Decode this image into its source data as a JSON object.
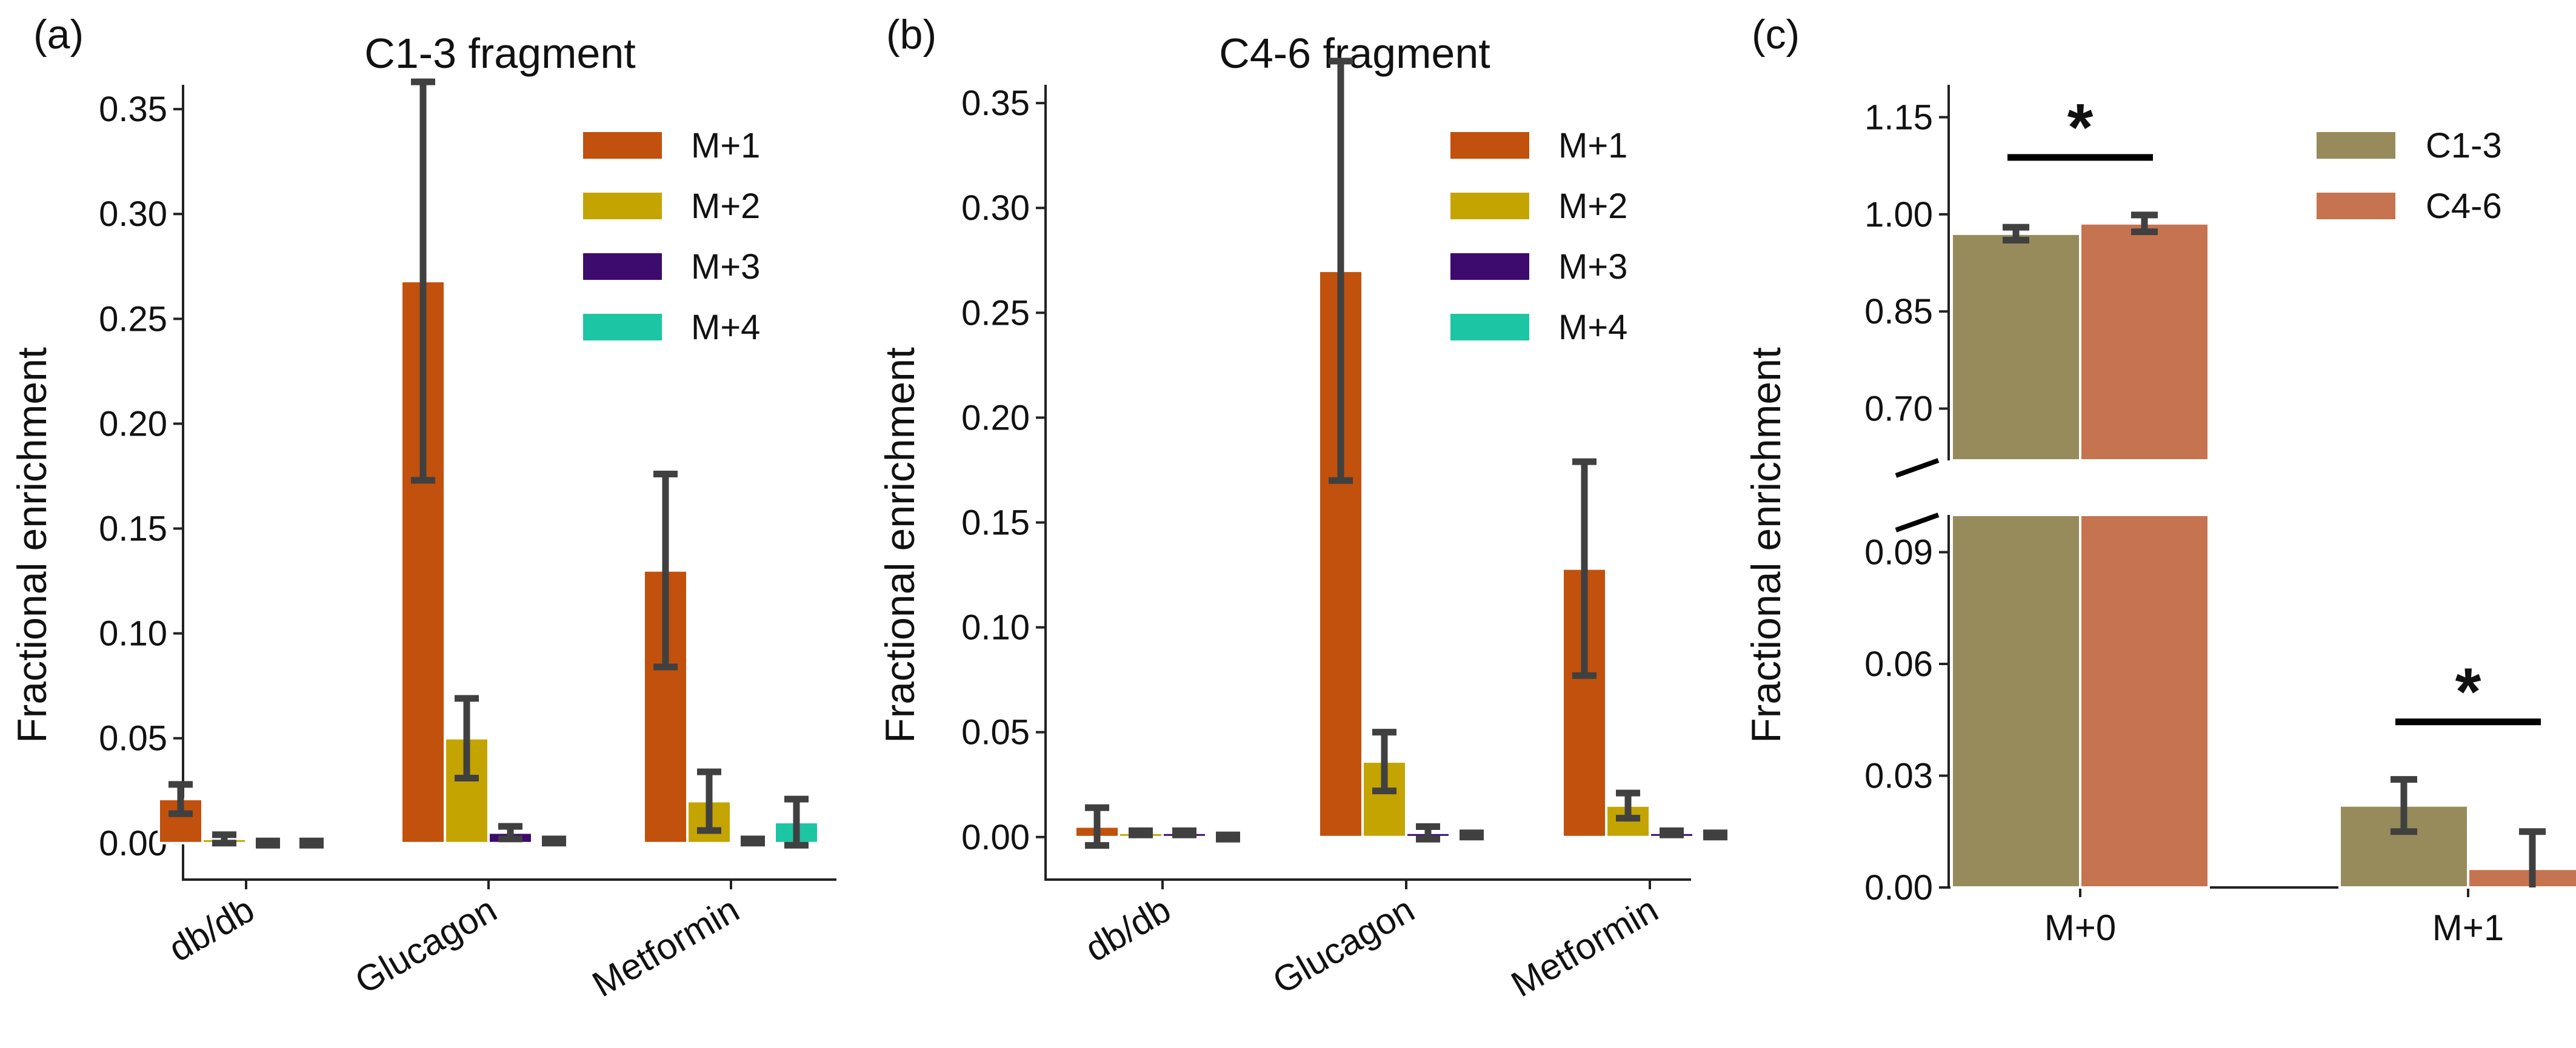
{
  "chart_data": [
    {
      "type": "bar",
      "panel": "(a)",
      "title": "C1-3 fragment",
      "xlabel": "",
      "ylabel": "Fractional enrichment",
      "ylim": [
        -0.02,
        0.385
      ],
      "yticks": [
        "0.00",
        "0.05",
        "0.10",
        "0.15",
        "0.20",
        "0.25",
        "0.30",
        "0.35"
      ],
      "categories": [
        "db/db",
        "Glucagon",
        "Metformin"
      ],
      "series": [
        {
          "name": "M+1",
          "color": "#c1510c",
          "values": [
            0.021,
            0.268,
            0.13
          ],
          "errors": [
            0.007,
            0.095,
            0.046
          ]
        },
        {
          "name": "M+2",
          "color": "#c4a400",
          "values": [
            0.002,
            0.05,
            0.02
          ],
          "errors": [
            0.002,
            0.019,
            0.014
          ]
        },
        {
          "name": "M+3",
          "color": "#3d0a6e",
          "values": [
            0.0,
            0.005,
            0.001
          ],
          "errors": [
            0.001,
            0.003,
            0.001
          ]
        },
        {
          "name": "M+4",
          "color": "#1cc6a5",
          "values": [
            0.0,
            0.001,
            0.01
          ],
          "errors": [
            0.001,
            0.001,
            0.011
          ]
        }
      ]
    },
    {
      "type": "bar",
      "panel": "(b)",
      "title": "C4-6 fragment",
      "xlabel": "",
      "ylabel": "Fractional enrichment",
      "ylim": [
        -0.02,
        0.385
      ],
      "yticks": [
        "0.00",
        "0.05",
        "0.10",
        "0.15",
        "0.20",
        "0.25",
        "0.30",
        "0.35"
      ],
      "categories": [
        "db/db",
        "Glucagon",
        "Metformin"
      ],
      "series": [
        {
          "name": "M+1",
          "color": "#c1510c",
          "values": [
            0.005,
            0.27,
            0.128
          ],
          "errors": [
            0.009,
            0.1,
            0.051
          ]
        },
        {
          "name": "M+2",
          "color": "#c4a400",
          "values": [
            0.002,
            0.036,
            0.015
          ],
          "errors": [
            0.001,
            0.014,
            0.006
          ]
        },
        {
          "name": "M+3",
          "color": "#3d0a6e",
          "values": [
            0.002,
            0.002,
            0.002
          ],
          "errors": [
            0.001,
            0.003,
            0.001
          ]
        },
        {
          "name": "M+4",
          "color": "#1cc6a5",
          "values": [
            0.0,
            0.001,
            0.001
          ],
          "errors": [
            0.001,
            0.001,
            0.001
          ]
        }
      ]
    },
    {
      "type": "bar",
      "panel": "(c)",
      "title": "",
      "xlabel": "",
      "ylabel": "Fractional enrichment",
      "broken_axis": true,
      "upper_ylim": [
        0.62,
        1.2
      ],
      "lower_ylim": [
        0.0,
        0.1
      ],
      "upper_yticks": [
        "0.70",
        "0.85",
        "1.00",
        "1.15"
      ],
      "lower_yticks": [
        "0.00",
        "0.03",
        "0.06",
        "0.09"
      ],
      "categories": [
        "M+0",
        "M+1"
      ],
      "series": [
        {
          "name": "C1-3",
          "color": "#978b5b",
          "values": [
            0.97,
            0.022
          ],
          "errors": [
            0.01,
            0.007
          ]
        },
        {
          "name": "C4-6",
          "color": "#c67350",
          "values": [
            0.986,
            0.005
          ],
          "errors": [
            0.013,
            0.01
          ]
        }
      ],
      "significance": [
        {
          "category": "M+0",
          "label": "*"
        },
        {
          "category": "M+1",
          "label": "*"
        }
      ]
    }
  ]
}
